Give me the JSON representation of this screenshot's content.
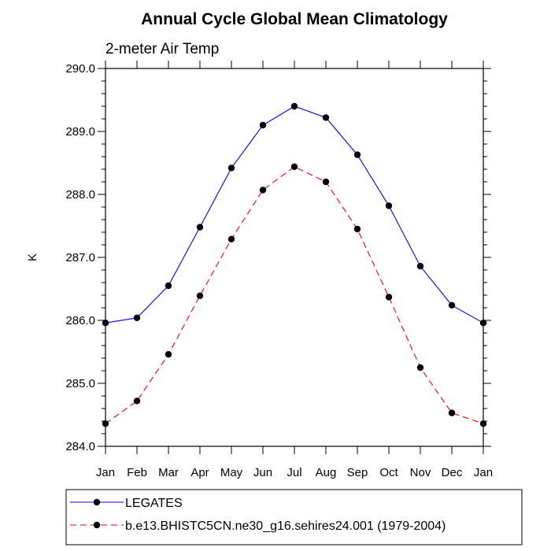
{
  "chart_data": {
    "type": "line",
    "title": "Annual Cycle Global Mean Climatology",
    "subtitle": "2-meter Air Temp",
    "ylabel": "K",
    "xlabel": "",
    "categories": [
      "Jan",
      "Feb",
      "Mar",
      "Apr",
      "May",
      "Jun",
      "Jul",
      "Aug",
      "Sep",
      "Oct",
      "Nov",
      "Dec",
      "Jan"
    ],
    "ylim": [
      284.0,
      290.0
    ],
    "yticks": [
      284.0,
      285.0,
      286.0,
      287.0,
      288.0,
      289.0,
      290.0
    ],
    "ytick_labels": [
      "284.0",
      "285.0",
      "286.0",
      "287.0",
      "288.0",
      "289.0",
      "290.0"
    ],
    "grid": false,
    "legend_position": "bottom",
    "series": [
      {
        "name": "LEGATES",
        "color": "#0000ff",
        "line_style": "solid",
        "marker": "filled-circle",
        "values": [
          285.96,
          286.04,
          286.55,
          287.48,
          288.42,
          289.1,
          289.4,
          289.22,
          288.63,
          287.82,
          286.86,
          286.24,
          285.96
        ]
      },
      {
        "name": "b.e13.BHISTC5CN.ne30_g16.sehires24.001 (1979-2004)",
        "color": "#ff0000",
        "line_style": "dashed",
        "marker": "filled-circle",
        "values": [
          284.36,
          284.72,
          285.46,
          286.39,
          287.29,
          288.07,
          288.44,
          288.2,
          287.45,
          286.37,
          285.25,
          284.53,
          284.36
        ]
      }
    ]
  }
}
